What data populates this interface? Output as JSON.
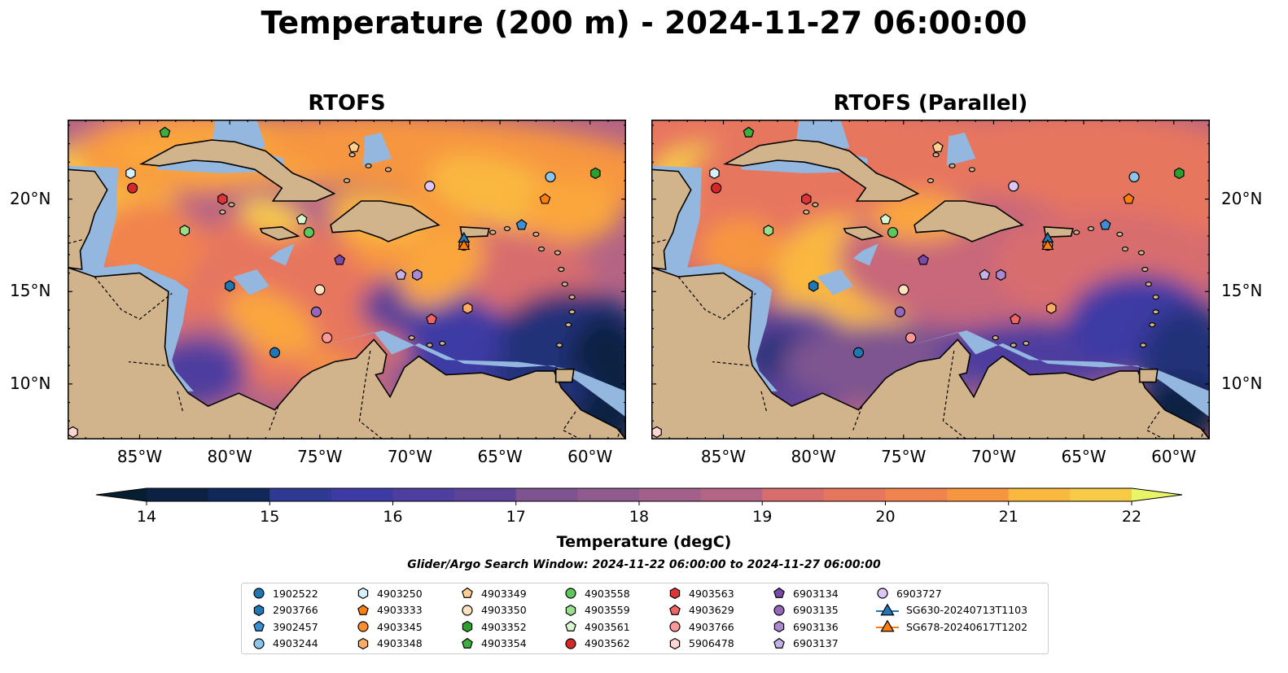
{
  "title": "Temperature (200 m) - 2024-11-27 06:00:00",
  "panels": [
    {
      "title": "RTOFS",
      "ytick_side": "left"
    },
    {
      "title": "RTOFS (Parallel)",
      "ytick_side": "right"
    }
  ],
  "map_axes": {
    "x_ticks": [
      "85°W",
      "80°W",
      "75°W",
      "70°W",
      "65°W",
      "60°W"
    ],
    "x_tick_values": [
      -85,
      -80,
      -75,
      -70,
      -65,
      -60
    ],
    "y_ticks": [
      "20°N",
      "15°N",
      "10°N"
    ],
    "y_tick_values": [
      20,
      15,
      10
    ],
    "lon_range": [
      -89,
      -58
    ],
    "lat_range": [
      7,
      24.3
    ]
  },
  "colorbar": {
    "label": "Temperature (degC)",
    "ticks": [
      "14",
      "15",
      "16",
      "17",
      "18",
      "19",
      "20",
      "21",
      "22"
    ],
    "range": [
      14,
      22
    ],
    "step": 0.5,
    "colors": [
      "#0d2242",
      "#10295a",
      "#213179",
      "#2f3a95",
      "#3d3aa4",
      "#4e3e9f",
      "#5d4398",
      "#6d4b92",
      "#7e5490",
      "#8f5b8e",
      "#a2608a",
      "#b46485",
      "#c8687a",
      "#d86d6e",
      "#e7765e",
      "#f1834e",
      "#f79641",
      "#faa63c",
      "#fab83f",
      "#f8cb46",
      "#f2de54"
    ],
    "under_color": "#071d30",
    "over_color": "#e8f567"
  },
  "colors": {
    "land": "#d2b48c",
    "shelf": "#94b7df",
    "deep_cold": "#082339"
  },
  "search_window": "Glider/Argo Search Window: 2024-11-22 06:00:00 to 2024-11-27 06:00:00",
  "legend": [
    {
      "label": "1902522",
      "marker": "circle",
      "color": "#1f77b4"
    },
    {
      "label": "2903766",
      "marker": "hexagon",
      "color": "#1f77b4"
    },
    {
      "label": "3902457",
      "marker": "pentagon",
      "color": "#3a8fd6"
    },
    {
      "label": "4903244",
      "marker": "circle",
      "color": "#8cc4ea"
    },
    {
      "label": "4903250",
      "marker": "hexagon",
      "color": "#d6f0ff"
    },
    {
      "label": "4903333",
      "marker": "pentagon",
      "color": "#ff7f0e"
    },
    {
      "label": "4903345",
      "marker": "circle",
      "color": "#ff8c2e"
    },
    {
      "label": "4903348",
      "marker": "hexagon",
      "color": "#ffab63"
    },
    {
      "label": "4903349",
      "marker": "pentagon",
      "color": "#ffcf90"
    },
    {
      "label": "4903350",
      "marker": "circle",
      "color": "#ffe3bf"
    },
    {
      "label": "4903352",
      "marker": "hexagon",
      "color": "#2ca02c"
    },
    {
      "label": "4903354",
      "marker": "pentagon",
      "color": "#3cb03c"
    },
    {
      "label": "4903558",
      "marker": "circle",
      "color": "#5cc85c"
    },
    {
      "label": "4903559",
      "marker": "hexagon",
      "color": "#98df8a"
    },
    {
      "label": "4903561",
      "marker": "pentagon",
      "color": "#d9f7cf"
    },
    {
      "label": "4903562",
      "marker": "circle",
      "color": "#d62728"
    },
    {
      "label": "4903563",
      "marker": "hexagon",
      "color": "#e03537"
    },
    {
      "label": "4903629",
      "marker": "pentagon",
      "color": "#f26464"
    },
    {
      "label": "4903766",
      "marker": "circle",
      "color": "#ff9896"
    },
    {
      "label": "5906478",
      "marker": "hexagon",
      "color": "#ffd6d4"
    },
    {
      "label": "6903134",
      "marker": "pentagon",
      "color": "#7b4aa8"
    },
    {
      "label": "6903135",
      "marker": "circle",
      "color": "#9467bd"
    },
    {
      "label": "6903136",
      "marker": "hexagon",
      "color": "#ac8ad3"
    },
    {
      "label": "6903137",
      "marker": "pentagon",
      "color": "#c5b0e8"
    },
    {
      "label": "6903727",
      "marker": "circle",
      "color": "#dcc6f5"
    },
    {
      "label": "SG630-20240713T1103",
      "marker": "triangle",
      "color": "#1f77b4"
    },
    {
      "label": "SG678-20240617T1202",
      "marker": "triangle",
      "color": "#ff7f0e"
    }
  ],
  "chart_data": {
    "type": "scatter",
    "title": "Temperature (200 m) - 2024-11-27 06:00:00",
    "xlabel": "",
    "ylabel": "",
    "xlim": [
      -89,
      -58
    ],
    "ylim": [
      7,
      24.3
    ],
    "series": [
      {
        "name": "1902522",
        "x": [
          -77.5
        ],
        "y": [
          11.7
        ]
      },
      {
        "name": "2903766",
        "x": [
          -80.0
        ],
        "y": [
          15.3
        ]
      },
      {
        "name": "3902457",
        "x": [
          -63.8
        ],
        "y": [
          18.6
        ]
      },
      {
        "name": "4903244",
        "x": [
          -62.2
        ],
        "y": [
          21.2
        ]
      },
      {
        "name": "4903250",
        "x": [
          -85.5
        ],
        "y": [
          21.4
        ]
      },
      {
        "name": "4903333",
        "x": [
          -62.5
        ],
        "y": [
          20.0
        ]
      },
      {
        "name": "4903345",
        "x": [
          -67.0
        ],
        "y": [
          17.5
        ]
      },
      {
        "name": "4903348",
        "x": [
          -66.8
        ],
        "y": [
          14.1
        ]
      },
      {
        "name": "4903349",
        "x": [
          -73.1
        ],
        "y": [
          22.8
        ]
      },
      {
        "name": "4903350",
        "x": [
          -75.0
        ],
        "y": [
          15.1
        ]
      },
      {
        "name": "4903352",
        "x": [
          -59.7
        ],
        "y": [
          21.4
        ]
      },
      {
        "name": "4903354",
        "x": [
          -83.6
        ],
        "y": [
          23.6
        ]
      },
      {
        "name": "4903558",
        "x": [
          -75.6
        ],
        "y": [
          18.2
        ]
      },
      {
        "name": "4903559",
        "x": [
          -82.5
        ],
        "y": [
          18.3
        ]
      },
      {
        "name": "4903561",
        "x": [
          -76.0
        ],
        "y": [
          18.9
        ]
      },
      {
        "name": "4903562",
        "x": [
          -85.4
        ],
        "y": [
          20.6
        ]
      },
      {
        "name": "4903563",
        "x": [
          -80.4
        ],
        "y": [
          20.0
        ]
      },
      {
        "name": "4903629",
        "x": [
          -68.8
        ],
        "y": [
          13.5
        ]
      },
      {
        "name": "4903766",
        "x": [
          -74.6
        ],
        "y": [
          12.5
        ]
      },
      {
        "name": "5906478",
        "x": [
          -88.7
        ],
        "y": [
          7.4
        ]
      },
      {
        "name": "6903134",
        "x": [
          -73.9
        ],
        "y": [
          16.7
        ]
      },
      {
        "name": "6903135",
        "x": [
          -75.2
        ],
        "y": [
          13.9
        ]
      },
      {
        "name": "6903136",
        "x": [
          -69.6
        ],
        "y": [
          15.9
        ]
      },
      {
        "name": "6903137",
        "x": [
          -70.5
        ],
        "y": [
          15.9
        ]
      },
      {
        "name": "6903727",
        "x": [
          -68.9
        ],
        "y": [
          20.7
        ]
      },
      {
        "name": "SG630-20240713T1103",
        "x": [
          -67.0
        ],
        "y": [
          17.9
        ]
      },
      {
        "name": "SG678-20240617T1202",
        "x": [
          -67.0
        ],
        "y": [
          17.5
        ]
      }
    ]
  }
}
